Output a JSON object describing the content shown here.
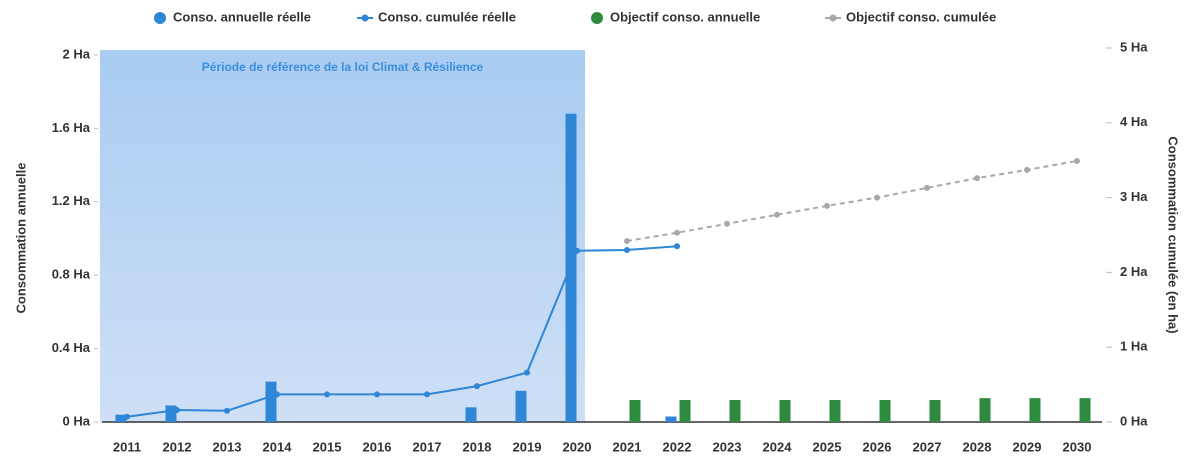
{
  "chart_data": {
    "type": "bar-line",
    "categories": [
      "2011",
      "2012",
      "2013",
      "2014",
      "2015",
      "2016",
      "2017",
      "2018",
      "2019",
      "2020",
      "2021",
      "2022",
      "2023",
      "2024",
      "2025",
      "2026",
      "2027",
      "2028",
      "2029",
      "2030"
    ],
    "series": [
      {
        "name": "Conso. annuelle réelle",
        "type": "bar",
        "color": "#2f86d6",
        "axis": "y",
        "values": [
          0.04,
          0.09,
          0,
          0.22,
          0,
          0,
          0,
          0.08,
          0.17,
          1.68,
          0,
          0.03,
          null,
          null,
          null,
          null,
          null,
          null,
          null,
          null
        ]
      },
      {
        "name": "Conso. cumulée réelle",
        "type": "line",
        "color": "#2f86d6",
        "axis": "y2",
        "values": [
          0.07,
          0.16,
          0.15,
          0.37,
          0.37,
          0.37,
          0.37,
          0.48,
          0.66,
          2.29,
          2.3,
          2.35,
          null,
          null,
          null,
          null,
          null,
          null,
          null,
          null
        ]
      },
      {
        "name": "Objectif conso. annuelle",
        "type": "bar",
        "color": "#2e8b3e",
        "axis": "y",
        "values": [
          null,
          null,
          null,
          null,
          null,
          null,
          null,
          null,
          null,
          null,
          0.12,
          0.12,
          0.12,
          0.12,
          0.12,
          0.12,
          0.12,
          0.13,
          0.13,
          0.13
        ]
      },
      {
        "name": "Objectif conso. cumulée",
        "type": "line",
        "color": "#a8a8a8",
        "dashed": true,
        "axis": "y2",
        "values": [
          null,
          null,
          null,
          null,
          null,
          null,
          null,
          null,
          null,
          null,
          2.42,
          2.53,
          2.65,
          2.77,
          2.89,
          3.0,
          3.13,
          3.26,
          3.37,
          3.49
        ]
      }
    ],
    "ylabel": "Consommation annuelle",
    "y2label": "Consommation cumulée (en ha)",
    "ylim": [
      0,
      2
    ],
    "yticks": [
      {
        "value": 0,
        "label": "0 Ha"
      },
      {
        "value": 0.4,
        "label": "0.4 Ha"
      },
      {
        "value": 0.8,
        "label": "0.8 Ha"
      },
      {
        "value": 1.2,
        "label": "1.2 Ha"
      },
      {
        "value": 1.6,
        "label": "1.6 Ha"
      },
      {
        "value": 2,
        "label": "2 Ha"
      }
    ],
    "y2lim": [
      0,
      5
    ],
    "y2ticks": [
      {
        "value": 0,
        "label": "0 Ha"
      },
      {
        "value": 1,
        "label": "1 Ha"
      },
      {
        "value": 2,
        "label": "2 Ha"
      },
      {
        "value": 3,
        "label": "3 Ha"
      },
      {
        "value": 4,
        "label": "4 Ha"
      },
      {
        "value": 5,
        "label": "5 Ha"
      }
    ],
    "period": {
      "label": "Période de référence de la loi Climat & Résilience",
      "start": "2011",
      "end": "2020"
    },
    "legend": "top"
  }
}
